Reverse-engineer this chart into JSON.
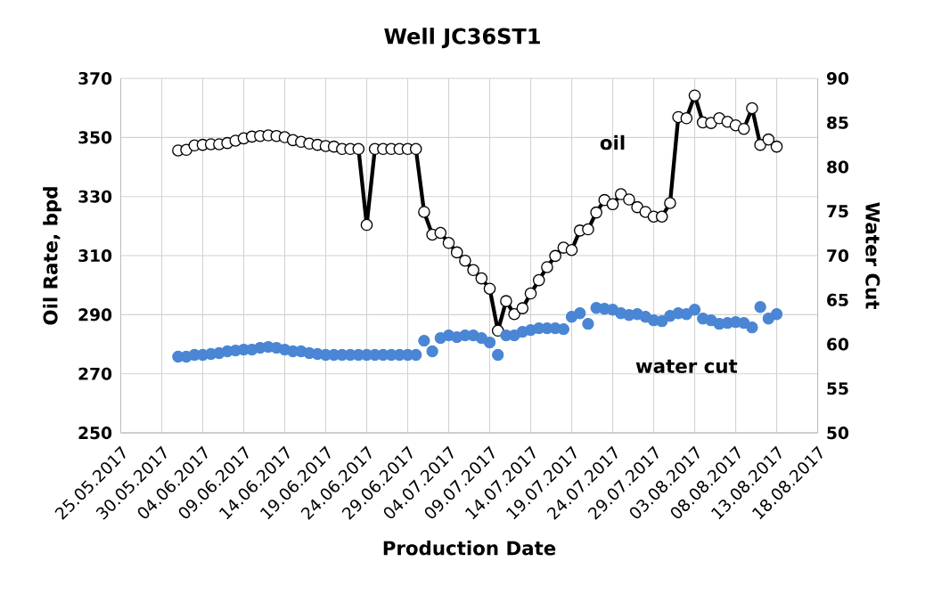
{
  "chart_data": {
    "type": "line",
    "title": "Well JC36ST1",
    "xlabel": "Production Date",
    "ylabel": "Oil Rate, bpd",
    "y2label": "Water Cut",
    "x": [
      "2017-06-01",
      "2017-06-02",
      "2017-06-03",
      "2017-06-04",
      "2017-06-05",
      "2017-06-06",
      "2017-06-07",
      "2017-06-08",
      "2017-06-09",
      "2017-06-10",
      "2017-06-11",
      "2017-06-12",
      "2017-06-13",
      "2017-06-14",
      "2017-06-15",
      "2017-06-16",
      "2017-06-17",
      "2017-06-18",
      "2017-06-19",
      "2017-06-20",
      "2017-06-21",
      "2017-06-22",
      "2017-06-23",
      "2017-06-24",
      "2017-06-25",
      "2017-06-26",
      "2017-06-27",
      "2017-06-28",
      "2017-06-29",
      "2017-06-30",
      "2017-07-01",
      "2017-07-02",
      "2017-07-03",
      "2017-07-04",
      "2017-07-05",
      "2017-07-06",
      "2017-07-07",
      "2017-07-08",
      "2017-07-09",
      "2017-07-10",
      "2017-07-11",
      "2017-07-12",
      "2017-07-13",
      "2017-07-14",
      "2017-07-15",
      "2017-07-16",
      "2017-07-17",
      "2017-07-18",
      "2017-07-19",
      "2017-07-20",
      "2017-07-21",
      "2017-07-22",
      "2017-07-23",
      "2017-07-24",
      "2017-07-25",
      "2017-07-26",
      "2017-07-27",
      "2017-07-28",
      "2017-07-29",
      "2017-07-30",
      "2017-07-31",
      "2017-08-01",
      "2017-08-02",
      "2017-08-03",
      "2017-08-04",
      "2017-08-05",
      "2017-08-06",
      "2017-08-07",
      "2017-08-08",
      "2017-08-09",
      "2017-08-10",
      "2017-08-11",
      "2017-08-12",
      "2017-08-13"
    ],
    "series": [
      {
        "name": "oil",
        "color": "#000000",
        "values": [
          345.6,
          345.8,
          347.3,
          347.5,
          347.7,
          347.7,
          348.1,
          348.9,
          349.7,
          350.3,
          350.5,
          350.7,
          350.5,
          350.1,
          349.1,
          348.5,
          347.9,
          347.5,
          347.1,
          346.9,
          346.1,
          346.1,
          346.1,
          320.4,
          346.1,
          346.1,
          346.1,
          346.1,
          346.1,
          346.1,
          324.8,
          317.1,
          317.7,
          314.3,
          311.1,
          308.3,
          305.1,
          302.3,
          298.8,
          284.6,
          294.6,
          290.2,
          292.2,
          297.2,
          301.7,
          306.1,
          309.9,
          312.7,
          311.9,
          318.5,
          318.9,
          324.6,
          328.8,
          327.4,
          330.8,
          329.0,
          326.4,
          324.8,
          323.2,
          323.2,
          327.8,
          356.9,
          356.5,
          364.2,
          355.1,
          354.9,
          356.5,
          355.3,
          354.1,
          352.9,
          359.9,
          347.5,
          349.3,
          346.9
        ]
      },
      {
        "name": "water cut",
        "type": "scatter",
        "axis": "y2",
        "color": "#4a86d4",
        "values": [
          58.6,
          58.6,
          58.8,
          58.8,
          58.9,
          59.0,
          59.2,
          59.3,
          59.4,
          59.4,
          59.6,
          59.7,
          59.6,
          59.4,
          59.2,
          59.2,
          59.0,
          58.9,
          58.8,
          58.8,
          58.8,
          58.8,
          58.8,
          58.8,
          58.8,
          58.8,
          58.8,
          58.8,
          58.8,
          58.8,
          60.4,
          59.2,
          60.7,
          61.0,
          60.8,
          61.0,
          61.0,
          60.7,
          60.2,
          58.8,
          61.0,
          61.0,
          61.4,
          61.6,
          61.8,
          61.8,
          61.8,
          61.7,
          63.1,
          63.5,
          62.3,
          64.1,
          64.0,
          63.9,
          63.5,
          63.3,
          63.4,
          63.1,
          62.7,
          62.6,
          63.2,
          63.5,
          63.4,
          63.9,
          62.9,
          62.7,
          62.3,
          62.4,
          62.5,
          62.4,
          61.9,
          64.2,
          62.9,
          63.4
        ]
      }
    ],
    "xlim": [
      "2017-05-25",
      "2017-08-18"
    ],
    "xticks": [
      {
        "value": "2017-05-25",
        "label": "25.05.2017"
      },
      {
        "value": "2017-05-30",
        "label": "30.05.2017"
      },
      {
        "value": "2017-06-04",
        "label": "04.06.2017"
      },
      {
        "value": "2017-06-09",
        "label": "09.06.2017"
      },
      {
        "value": "2017-06-14",
        "label": "14.06.2017"
      },
      {
        "value": "2017-06-19",
        "label": "19.06.2017"
      },
      {
        "value": "2017-06-24",
        "label": "24.06.2017"
      },
      {
        "value": "2017-06-29",
        "label": "29.06.2017"
      },
      {
        "value": "2017-07-04",
        "label": "04.07.2017"
      },
      {
        "value": "2017-07-09",
        "label": "09.07.2017"
      },
      {
        "value": "2017-07-14",
        "label": "14.07.2017"
      },
      {
        "value": "2017-07-19",
        "label": "19.07.2017"
      },
      {
        "value": "2017-07-24",
        "label": "24.07.2017"
      },
      {
        "value": "2017-07-29",
        "label": "29.07.2017"
      },
      {
        "value": "2017-08-03",
        "label": "03.08.2017"
      },
      {
        "value": "2017-08-08",
        "label": "08.08.2017"
      },
      {
        "value": "2017-08-13",
        "label": "13.08.2017"
      },
      {
        "value": "2017-08-18",
        "label": "18.08.2017"
      }
    ],
    "ylim": [
      250,
      370
    ],
    "yticks": [
      250,
      270,
      290,
      310,
      330,
      350,
      370
    ],
    "y2lim": [
      50,
      90
    ],
    "y2ticks": [
      50,
      55,
      60,
      65,
      70,
      75,
      80,
      85,
      90
    ],
    "grid": true,
    "marker": "circle"
  }
}
